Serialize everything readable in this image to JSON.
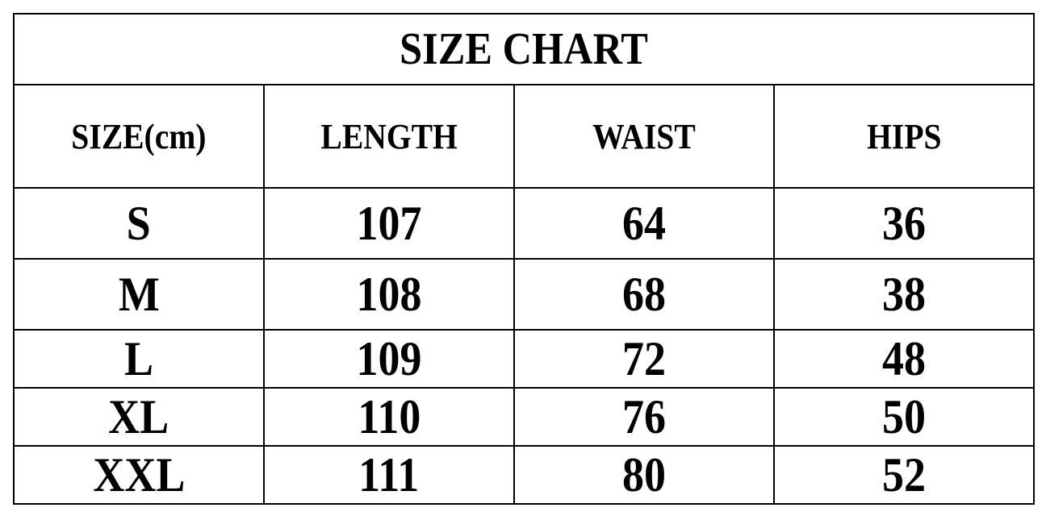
{
  "title": "SIZE CHART",
  "headers": [
    "SIZE(cm)",
    "LENGTH",
    "WAIST",
    "HIPS"
  ],
  "rows": [
    [
      "S",
      "107",
      "64",
      "36"
    ],
    [
      "M",
      "108",
      "68",
      "38"
    ],
    [
      "L",
      "109",
      "72",
      "48"
    ],
    [
      "XL",
      "110",
      "76",
      "50"
    ],
    [
      "XXL",
      "111",
      "80",
      "52"
    ]
  ]
}
